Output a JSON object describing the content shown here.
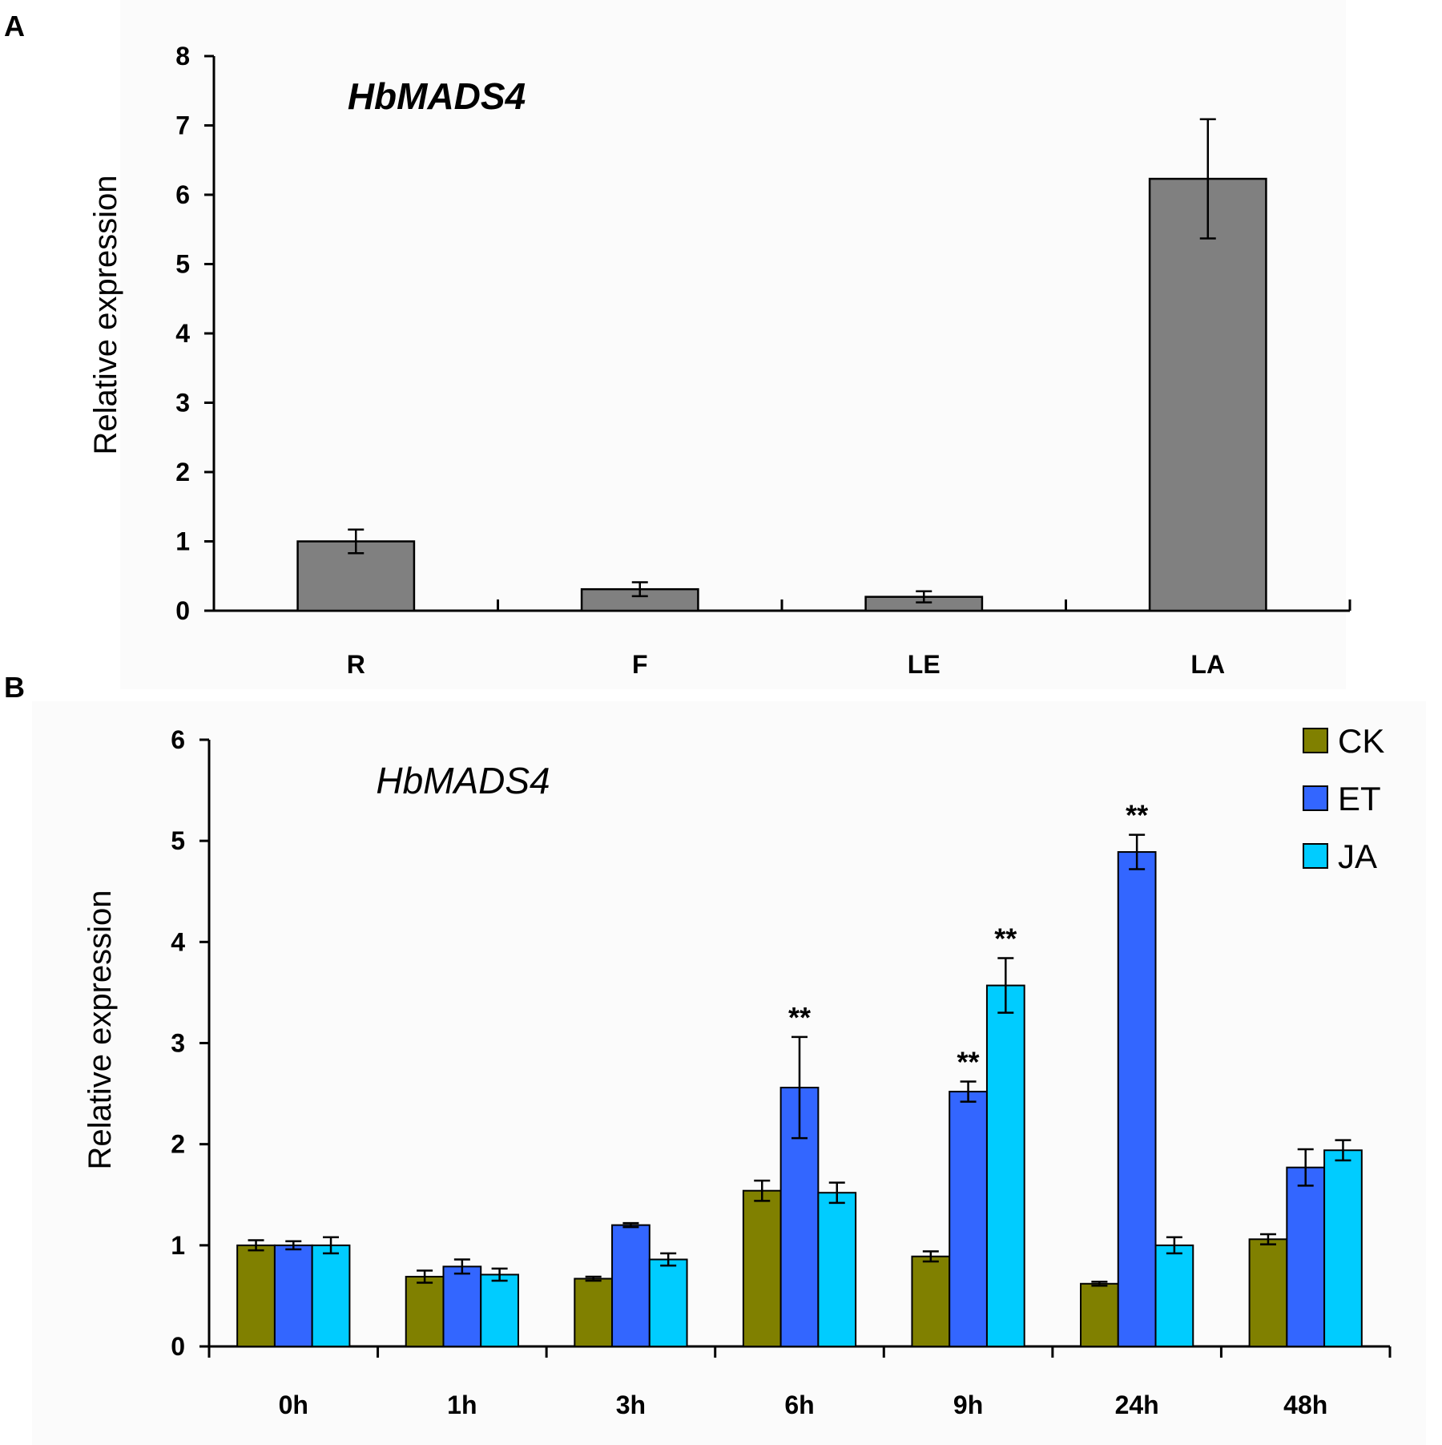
{
  "chart_data": [
    {
      "panel": "A",
      "type": "bar",
      "title": "HbMADS4",
      "xlabel": "",
      "ylabel": "Relative expression",
      "ylim": [
        0,
        8
      ],
      "yticks": [
        "0",
        "1",
        "2",
        "3",
        "4",
        "5",
        "6",
        "7",
        "8"
      ],
      "categories": [
        "R",
        "F",
        "LE",
        "LA"
      ],
      "values": [
        1.0,
        0.31,
        0.2,
        6.23
      ],
      "errors": [
        0.17,
        0.1,
        0.08,
        0.86
      ],
      "color": "#808080"
    },
    {
      "panel": "B",
      "type": "bar",
      "title": "HbMADS4",
      "xlabel": "",
      "ylabel": "Relative expression",
      "ylim": [
        0,
        6
      ],
      "yticks": [
        "0",
        "1",
        "2",
        "3",
        "4",
        "5",
        "6"
      ],
      "categories": [
        "0h",
        "1h",
        "3h",
        "6h",
        "9h",
        "24h",
        "48h"
      ],
      "legend_position": "top-right",
      "series": [
        {
          "name": "CK",
          "color": "#808000",
          "values": [
            1.0,
            0.69,
            0.67,
            1.54,
            0.89,
            0.62,
            1.06
          ],
          "errors": [
            0.05,
            0.06,
            0.02,
            0.1,
            0.05,
            0.02,
            0.05
          ],
          "marks": [
            "",
            "",
            "",
            "",
            "",
            "",
            ""
          ]
        },
        {
          "name": "ET",
          "color": "#3366ff",
          "values": [
            1.0,
            0.79,
            1.2,
            2.56,
            2.52,
            4.89,
            1.77
          ],
          "errors": [
            0.04,
            0.07,
            0.02,
            0.5,
            0.1,
            0.17,
            0.18
          ],
          "marks": [
            "",
            "",
            "",
            "**",
            "**",
            "**",
            ""
          ]
        },
        {
          "name": "JA",
          "color": "#00ccff",
          "values": [
            1.0,
            0.71,
            0.86,
            1.52,
            3.57,
            1.0,
            1.94
          ],
          "errors": [
            0.08,
            0.06,
            0.06,
            0.1,
            0.27,
            0.08,
            0.1
          ],
          "marks": [
            "",
            "",
            "",
            "",
            "**",
            "",
            ""
          ]
        }
      ]
    }
  ]
}
